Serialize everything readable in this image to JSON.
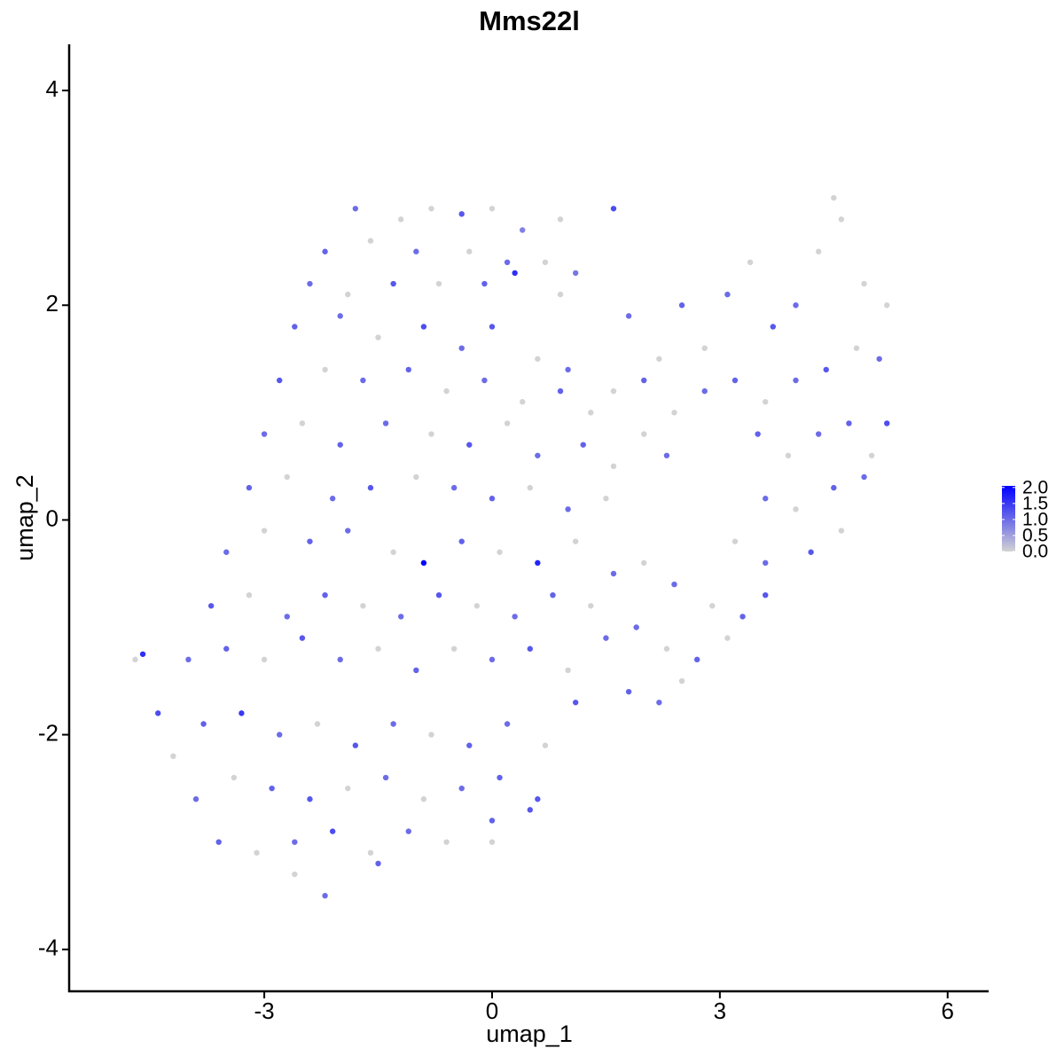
{
  "chart_data": {
    "type": "scatter",
    "title": "Mms22l",
    "x_label": "umap_1",
    "y_label": "umap_2",
    "xlim": [
      -5.57,
      6.54
    ],
    "ylim": [
      -4.39,
      4.43
    ],
    "xticks": [
      -3,
      0,
      3,
      6
    ],
    "yticks": [
      -4,
      -2,
      0,
      2,
      4
    ],
    "low_color": "#d3d3d3",
    "high_color": "#0000ff",
    "colorlim": [
      0,
      2.05
    ],
    "color_ticks": [
      {
        "value": 0,
        "label": "0.0"
      },
      {
        "value": 0.5,
        "label": "0.5"
      },
      {
        "value": 1,
        "label": "1.0"
      },
      {
        "value": 1.5,
        "label": "1.5"
      },
      {
        "value": 2,
        "label": "2.0"
      }
    ],
    "x": [
      -1.8,
      -1.2,
      -0.8,
      -0.4,
      0,
      0.4,
      0.9,
      1.6,
      -2.2,
      -1.6,
      -1.0,
      -0.3,
      0.2,
      0.7,
      1.1,
      -2.4,
      -1.9,
      -1.3,
      -0.7,
      -0.1,
      0.3,
      0.9,
      -2.6,
      -2.0,
      -1.5,
      -0.9,
      -0.4,
      0.0,
      0.6,
      1.0,
      -2.8,
      -2.2,
      -1.7,
      -1.1,
      -0.6,
      -0.1,
      0.4,
      0.9,
      1.3,
      -3.0,
      -2.5,
      -2.0,
      -1.4,
      -0.8,
      -0.3,
      0.2,
      0.6,
      1.2,
      1.6,
      -3.2,
      -2.7,
      -2.1,
      -1.6,
      -1.0,
      -0.5,
      0.0,
      0.5,
      1.0,
      1.5,
      -3.5,
      -3.0,
      -2.4,
      -1.9,
      -1.3,
      -0.9,
      -0.4,
      0.1,
      0.6,
      1.1,
      1.6,
      -3.7,
      -3.2,
      -2.7,
      -2.2,
      -1.7,
      -1.2,
      -0.7,
      -0.2,
      0.3,
      0.8,
      1.3,
      -4.0,
      -3.5,
      -3.0,
      -2.5,
      -2.0,
      -1.5,
      -1.0,
      -0.5,
      0.0,
      0.5,
      1.0,
      1.5,
      -4.6,
      -4.7,
      -4.4,
      -4.2,
      -3.8,
      -3.3,
      -2.8,
      -2.3,
      -1.8,
      -1.3,
      -0.8,
      -0.3,
      0.2,
      0.7,
      1.1,
      -3.9,
      -3.4,
      -2.9,
      -2.4,
      -1.9,
      -1.4,
      -0.9,
      -0.4,
      0.1,
      0.6,
      -3.6,
      -3.1,
      -2.6,
      -2.1,
      -1.6,
      -1.1,
      -0.6,
      0.0,
      0.5,
      -2.6,
      -2.2,
      -1.5,
      0.0,
      1.8,
      2.2,
      2.5,
      2.8,
      3.1,
      3.4,
      3.7,
      4.0,
      4.3,
      4.6,
      4.9,
      5.2,
      4.5,
      1.6,
      2.0,
      2.4,
      2.8,
      3.2,
      3.6,
      4.0,
      4.4,
      4.8,
      5.1,
      2.0,
      2.3,
      3.5,
      3.9,
      4.3,
      4.7,
      5.2,
      5.0,
      3.6,
      4.0,
      4.5,
      4.9,
      3.2,
      3.6,
      4.2,
      4.6,
      2.0,
      2.4,
      2.9,
      3.3,
      3.6,
      1.9,
      2.3,
      2.7,
      3.1,
      2.2,
      2.5,
      1.8
    ],
    "values": [
      2.9,
      2.8,
      2.9,
      2.85,
      2.9,
      2.7,
      2.8,
      2.9,
      2.5,
      2.6,
      2.5,
      2.5,
      2.4,
      2.4,
      2.3,
      2.2,
      2.1,
      2.2,
      2.2,
      2.2,
      2.3,
      2.1,
      1.8,
      1.9,
      1.7,
      1.8,
      1.6,
      1.8,
      1.5,
      1.4,
      1.3,
      1.4,
      1.3,
      1.4,
      1.2,
      1.3,
      1.1,
      1.2,
      1.0,
      0.8,
      0.9,
      0.7,
      0.9,
      0.8,
      0.7,
      0.9,
      0.6,
      0.7,
      0.5,
      0.3,
      0.4,
      0.2,
      0.3,
      0.4,
      0.3,
      0.2,
      0.3,
      0.1,
      0.2,
      -0.3,
      -0.1,
      -0.2,
      -0.1,
      -0.3,
      -0.4,
      -0.2,
      -0.3,
      -0.4,
      -0.2,
      -0.5,
      -0.8,
      -0.7,
      -0.9,
      -0.7,
      -0.8,
      -0.9,
      -0.7,
      -0.8,
      -0.9,
      -0.7,
      -0.8,
      -1.3,
      -1.2,
      -1.3,
      -1.1,
      -1.3,
      -1.2,
      -1.4,
      -1.2,
      -1.3,
      -1.2,
      -1.4,
      -1.1,
      -1.25,
      -1.3,
      -1.8,
      -2.2,
      -1.9,
      -1.8,
      -2.0,
      -1.9,
      -2.1,
      -1.9,
      -2.0,
      -2.1,
      -1.9,
      -2.1,
      -1.7,
      -2.6,
      -2.4,
      -2.5,
      -2.6,
      -2.5,
      -2.4,
      -2.6,
      -2.5,
      -2.4,
      -2.6,
      -3.0,
      -3.1,
      -3.0,
      -2.9,
      -3.1,
      -2.9,
      -3.0,
      -2.8,
      -2.7,
      -3.3,
      -3.5,
      -3.2,
      -3.0,
      1.9,
      1.5,
      2.0,
      1.6,
      2.1,
      2.4,
      1.8,
      2.0,
      2.5,
      2.8,
      2.2,
      2.0,
      3.0,
      1.2,
      1.3,
      1.0,
      1.2,
      1.3,
      1.1,
      1.3,
      1.4,
      1.6,
      1.5,
      0.8,
      0.6,
      0.8,
      0.6,
      0.8,
      0.9,
      0.9,
      0.6,
      0.2,
      0.1,
      0.3,
      0.4,
      -0.2,
      -0.4,
      -0.3,
      -0.1,
      -0.4,
      -0.6,
      -0.8,
      -0.9,
      -0.7,
      -1.0,
      -1.2,
      -1.3,
      -1.1,
      -1.7,
      -1.5,
      -1.6
    ],
    "color_values": [
      1.0,
      0,
      0,
      1.2,
      0,
      0.8,
      0,
      1.3,
      1.1,
      0,
      1.0,
      0,
      1.0,
      0,
      0.9,
      1.0,
      0,
      1.2,
      0,
      1.1,
      1.6,
      0,
      1.1,
      1.0,
      0,
      1.3,
      1.0,
      1.2,
      0,
      1.0,
      1.2,
      0,
      1.0,
      1.1,
      0,
      1.0,
      0,
      1.1,
      0,
      1.0,
      0,
      1.1,
      1.0,
      0,
      1.2,
      0,
      1.0,
      1.1,
      0,
      1.1,
      0,
      1.0,
      1.2,
      0,
      1.0,
      1.1,
      0,
      1.0,
      0,
      1.0,
      0,
      1.1,
      1.0,
      0,
      2.0,
      1.1,
      0,
      1.7,
      0,
      1.0,
      1.2,
      0,
      1.0,
      1.1,
      0,
      1.0,
      1.2,
      0,
      1.0,
      1.1,
      0,
      1.0,
      1.1,
      0,
      1.2,
      1.0,
      0,
      1.1,
      0,
      1.0,
      1.2,
      0,
      1.0,
      1.6,
      0,
      1.3,
      0,
      1.1,
      1.5,
      1.0,
      0,
      1.2,
      1.0,
      0,
      1.1,
      1.0,
      0,
      1.2,
      1.0,
      0,
      1.1,
      1.2,
      0,
      1.0,
      0,
      1.0,
      1.1,
      1.2,
      1.1,
      0,
      1.0,
      1.3,
      0,
      1.0,
      0,
      1.1,
      1.2,
      0,
      1.0,
      1.1,
      0,
      1.0,
      0,
      1.1,
      0,
      1.0,
      0,
      1.2,
      1.0,
      0,
      0,
      0,
      0,
      0,
      0,
      1.1,
      0,
      1.0,
      1.1,
      0,
      1.0,
      1.2,
      0,
      1.0,
      0,
      1.0,
      1.1,
      0,
      1.0,
      1.1,
      1.3,
      0,
      1.0,
      0,
      1.1,
      1.0,
      0,
      1.0,
      1.2,
      0,
      0,
      1.0,
      0,
      1.1,
      1.2,
      1.0,
      0,
      1.1,
      0,
      1.0,
      0,
      1.1
    ]
  }
}
